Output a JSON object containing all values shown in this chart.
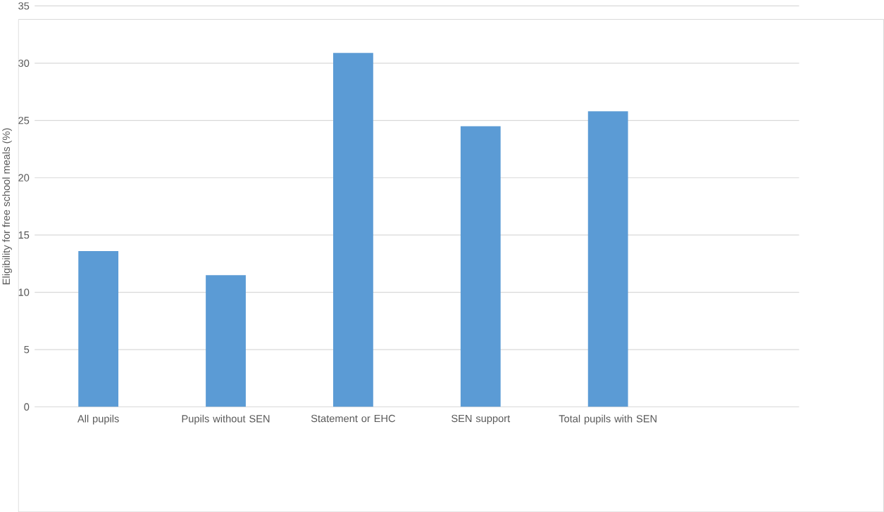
{
  "chart_data": {
    "type": "bar",
    "ylabel": "Eligibility for free school meals (%)",
    "categories": [
      "All pupils",
      "Pupils without SEN",
      "Statement or EHC",
      "SEN support",
      "Total pupils with SEN",
      null
    ],
    "values": [
      13.6,
      11.5,
      30.9,
      24.5,
      25.8,
      null
    ],
    "color": "#5b9bd5",
    "ylim": [
      0,
      35
    ],
    "yticks": [
      0,
      5,
      10,
      15,
      20,
      25,
      30,
      35
    ],
    "grid": "y"
  }
}
